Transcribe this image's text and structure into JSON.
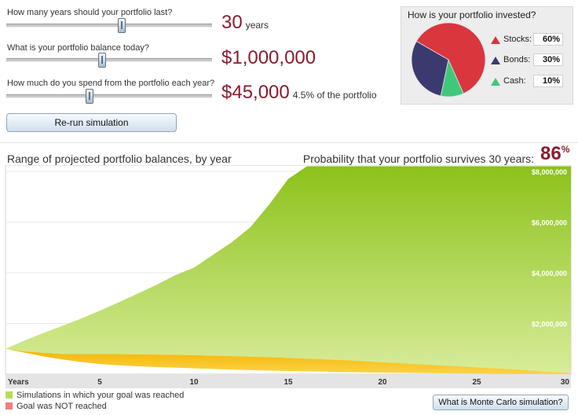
{
  "controls": {
    "years": {
      "question": "How many years should your portfolio last?",
      "value": "30",
      "unit": "years",
      "slider_fraction": 0.56
    },
    "balance": {
      "question": "What is your portfolio balance today?",
      "value": "$1,000,000",
      "slider_fraction": 0.465
    },
    "spend": {
      "question": "How much do you spend from the portfolio each year?",
      "value": "$45,000",
      "note": "4.5% of the portfolio",
      "slider_fraction": 0.405
    },
    "rerun_label": "Re-run simulation"
  },
  "allocation": {
    "title": "How is your portfolio invested?",
    "items": [
      {
        "name": "Stocks:",
        "value": "60%",
        "percent": 60,
        "color": "#d9363e"
      },
      {
        "name": "Bonds:",
        "value": "30%",
        "percent": 30,
        "color": "#3b3a6e"
      },
      {
        "name": "Cash:",
        "value": "10%",
        "percent": 10,
        "color": "#3ec97a"
      }
    ]
  },
  "results": {
    "chart_title": "Range of projected portfolio balances, by year",
    "probability_label": "Probability that your portfolio survives 30 years:",
    "probability_value": "86",
    "probability_unit": "%"
  },
  "chart_data": {
    "type": "area",
    "title": "Range of projected portfolio balances, by year",
    "xlabel": "Years",
    "ylabel": "",
    "xlim": [
      0,
      30
    ],
    "ylim": [
      0,
      8000000
    ],
    "x_ticks": [
      "5",
      "10",
      "15",
      "20",
      "25",
      "30"
    ],
    "x_tick_values": [
      5,
      10,
      15,
      20,
      25,
      30
    ],
    "y_ticks": [
      "$2,000,000",
      "$4,000,000",
      "$6,000,000",
      "$8,000,000"
    ],
    "y_tick_values": [
      2000000,
      4000000,
      6000000,
      8000000
    ],
    "series": [
      {
        "name": "Simulations in which your goal was reached",
        "color": "#8cc21a",
        "x": [
          0,
          1,
          2,
          3,
          4,
          5,
          6,
          7,
          8,
          9,
          10,
          11,
          12,
          13,
          14,
          15,
          16,
          17,
          18,
          19,
          20,
          21,
          22,
          23,
          24,
          25,
          26,
          27,
          28,
          29,
          30
        ],
        "upper": [
          1000000,
          1320000,
          1620000,
          1900000,
          2190000,
          2500000,
          2830000,
          3170000,
          3520000,
          3900000,
          4200000,
          4700000,
          5200000,
          5800000,
          6700000,
          7700000,
          8200000,
          8200000,
          8200000,
          8200000,
          8200000,
          8200000,
          8200000,
          8200000,
          8200000,
          8200000,
          8200000,
          8200000,
          8200000,
          8200000,
          8200000
        ]
      },
      {
        "name": "Goal was NOT reached",
        "color": "#f5b400",
        "x": [
          0,
          1,
          2,
          3,
          4,
          5,
          6,
          7,
          8,
          9,
          10,
          11,
          12,
          13,
          14,
          15,
          16,
          17,
          18,
          19,
          20,
          21,
          22,
          23,
          24,
          25,
          26,
          27,
          28,
          29,
          30
        ],
        "upper": [
          1000000,
          900000,
          840000,
          800000,
          790000,
          790000,
          790000,
          780000,
          770000,
          760000,
          750000,
          730000,
          710000,
          690000,
          670000,
          640000,
          610000,
          580000,
          550000,
          510000,
          470000,
          430000,
          390000,
          350000,
          310000,
          270000,
          230000,
          190000,
          140000,
          90000,
          40000
        ],
        "lower": [
          1000000,
          850000,
          700000,
          580000,
          480000,
          400000,
          350000,
          310000,
          280000,
          255000,
          230000,
          205000,
          180000,
          160000,
          140000,
          125000,
          110000,
          95000,
          82000,
          70000,
          60000,
          50000,
          42000,
          35000,
          28000,
          22000,
          16000,
          11000,
          7000,
          3000,
          0
        ]
      }
    ]
  },
  "legend": {
    "reached": "Simulations in which your goal was reached",
    "not_reached": "Goal was NOT reached"
  },
  "monte_carlo_button": "What is Monte Carlo simulation?"
}
